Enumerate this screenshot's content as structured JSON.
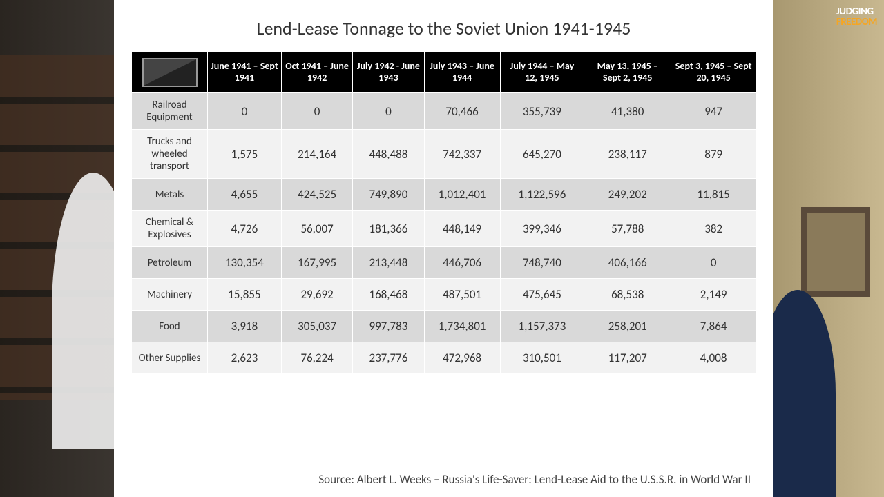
{
  "logo": {
    "line1": "JUDGING",
    "line2": "FREEDOM"
  },
  "slide": {
    "title": "Lend-Lease Tonnage to the Soviet Union 1941-1945",
    "columns": [
      "June 1941 – Sept 1941",
      "Oct 1941 – June 1942",
      "July 1942 - June 1943",
      "July 1943 – June 1944",
      "July 1944 – May 12, 1945",
      "May 13, 1945 – Sept 2, 1945",
      "Sept 3, 1945 – Sept 20, 1945"
    ],
    "rows": [
      {
        "label": "Railroad Equipment",
        "values": [
          "0",
          "0",
          "0",
          "70,466",
          "355,739",
          "41,380",
          "947"
        ]
      },
      {
        "label": "Trucks and wheeled transport",
        "values": [
          "1,575",
          "214,164",
          "448,488",
          "742,337",
          "645,270",
          "238,117",
          "879"
        ]
      },
      {
        "label": "Metals",
        "values": [
          "4,655",
          "424,525",
          "749,890",
          "1,012,401",
          "1,122,596",
          "249,202",
          "11,815"
        ]
      },
      {
        "label": "Chemical & Explosives",
        "values": [
          "4,726",
          "56,007",
          "181,366",
          "448,149",
          "399,346",
          "57,788",
          "382"
        ]
      },
      {
        "label": "Petroleum",
        "values": [
          "130,354",
          "167,995",
          "213,448",
          "446,706",
          "748,740",
          "406,166",
          "0"
        ]
      },
      {
        "label": "Machinery",
        "values": [
          "15,855",
          "29,692",
          "168,468",
          "487,501",
          "475,645",
          "68,538",
          "2,149"
        ]
      },
      {
        "label": "Food",
        "values": [
          "3,918",
          "305,037",
          "997,783",
          "1,734,801",
          "1,157,373",
          "258,201",
          "7,864"
        ]
      },
      {
        "label": "Other Supplies",
        "values": [
          "2,623",
          "76,224",
          "237,776",
          "472,968",
          "310,501",
          "117,207",
          "4,008"
        ]
      }
    ],
    "source": "Source: Albert L. Weeks – Russia's Life-Saver: Lend-Lease Aid to the U.S.S.R. in World War II"
  }
}
